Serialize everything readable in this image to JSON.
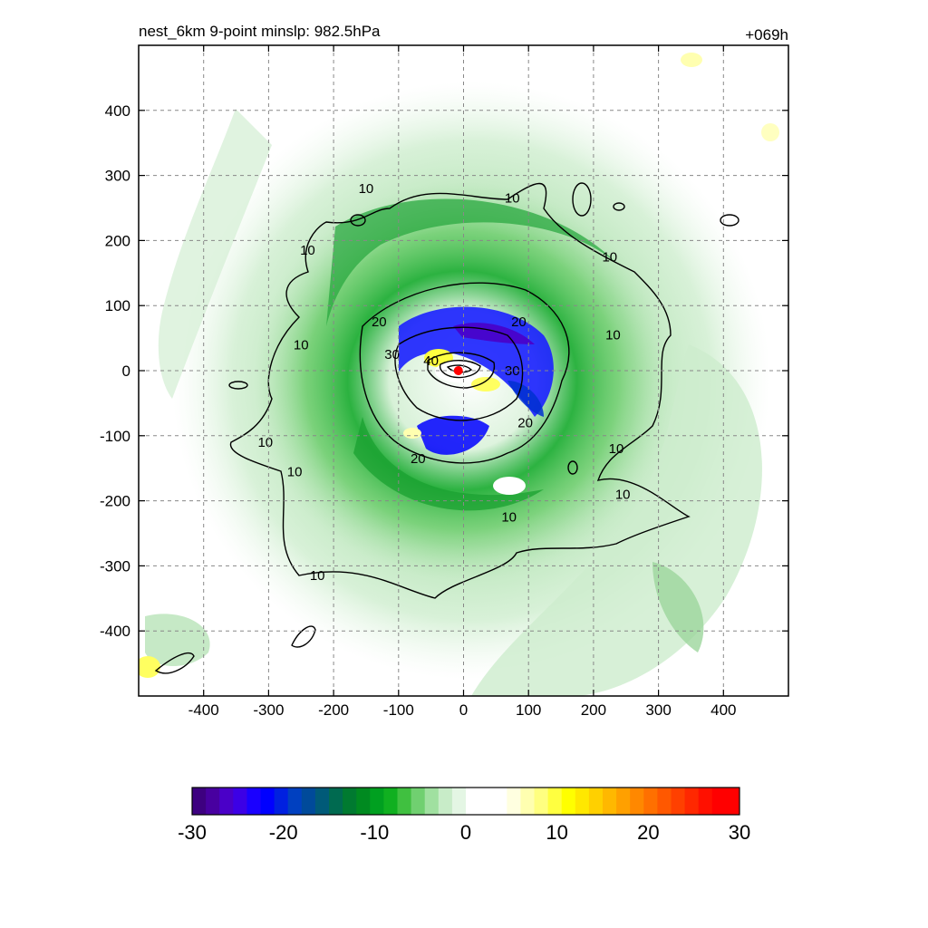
{
  "title": {
    "left": "nest_6km  9-point minslp: 982.5hPa",
    "right": "+069h"
  },
  "chart_data": {
    "type": "heatmap",
    "title": "nest_6km  9-point minslp: 982.5hPa",
    "time_label": "+069h",
    "xlabel": "",
    "ylabel": "",
    "xlim": [
      -500,
      500
    ],
    "ylim": [
      -500,
      500
    ],
    "x_ticks": [
      -400,
      -300,
      -200,
      -100,
      0,
      100,
      200,
      300,
      400
    ],
    "y_ticks": [
      400,
      300,
      200,
      100,
      0,
      -100,
      -200,
      -300,
      -400
    ],
    "x_tick_labels": [
      "-400",
      "-300",
      "-200",
      "-100",
      "0",
      "100",
      "200",
      "300",
      "400"
    ],
    "y_tick_labels": [
      "400",
      "300",
      "200",
      "100",
      "0",
      "-100",
      "-200",
      "-300",
      "-400"
    ],
    "grid": true,
    "colorbar": {
      "range": [
        -30,
        30
      ],
      "ticks": [
        "-30",
        "-20",
        "-10",
        "0",
        "10",
        "20",
        "30"
      ],
      "colors": [
        "#3d0080",
        "#4800a0",
        "#4a00c8",
        "#3c00e6",
        "#1a00ff",
        "#0000ff",
        "#0020e0",
        "#0040c0",
        "#004a9a",
        "#005a78",
        "#006a50",
        "#007a30",
        "#008a20",
        "#00a020",
        "#10b020",
        "#40c040",
        "#70d070",
        "#a0e0a0",
        "#c8ecc8",
        "#e4f6e4",
        "#ffffff",
        "#ffffff",
        "#ffffff",
        "#ffffe0",
        "#ffffb0",
        "#ffff80",
        "#ffff40",
        "#ffff00",
        "#ffe800",
        "#ffd000",
        "#ffb800",
        "#ffa000",
        "#ff8800",
        "#ff7000",
        "#ff5800",
        "#ff4000",
        "#ff2800",
        "#ff1000",
        "#ff0000",
        "#ff0000"
      ]
    },
    "contour_labels": [
      {
        "text": "10",
        "x": -150,
        "y": 280
      },
      {
        "text": "10",
        "x": 75,
        "y": 265
      },
      {
        "text": "10",
        "x": -240,
        "y": 185
      },
      {
        "text": "10",
        "x": 225,
        "y": 175
      },
      {
        "text": "10",
        "x": 230,
        "y": 55
      },
      {
        "text": "10",
        "x": -250,
        "y": 40
      },
      {
        "text": "20",
        "x": -130,
        "y": 75
      },
      {
        "text": "20",
        "x": 85,
        "y": 75
      },
      {
        "text": "30",
        "x": -110,
        "y": 25
      },
      {
        "text": "30",
        "x": 75,
        "y": 0
      },
      {
        "text": "40",
        "x": -50,
        "y": 15
      },
      {
        "text": "20",
        "x": 95,
        "y": -80
      },
      {
        "text": "20",
        "x": -70,
        "y": -135
      },
      {
        "text": "10",
        "x": -305,
        "y": -110
      },
      {
        "text": "10",
        "x": -260,
        "y": -155
      },
      {
        "text": "10",
        "x": 235,
        "y": -120
      },
      {
        "text": "10",
        "x": 245,
        "y": -190
      },
      {
        "text": "10",
        "x": 70,
        "y": -225
      },
      {
        "text": "10",
        "x": -225,
        "y": -315
      }
    ],
    "center_marker": {
      "x": -8,
      "y": 0,
      "color": "#ff0000"
    }
  }
}
